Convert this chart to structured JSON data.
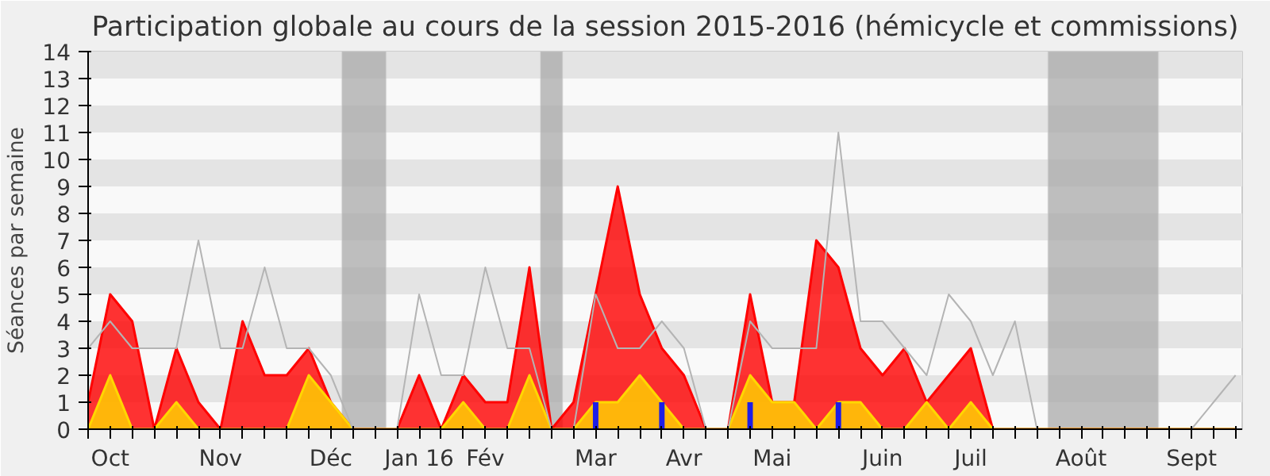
{
  "chart_data": {
    "type": "area",
    "title": "Participation globale au cours de la session 2015-2016 (hémicycle et commissions)",
    "ylabel": "Séances par semaine",
    "categories": [
      null,
      "Oct",
      null,
      null,
      null,
      null,
      "Nov",
      null,
      null,
      null,
      null,
      "Déc",
      null,
      null,
      null,
      "Jan 16",
      null,
      null,
      "Fév",
      null,
      null,
      null,
      null,
      "Mar",
      null,
      null,
      null,
      "Avr",
      null,
      null,
      null,
      "Mai",
      null,
      null,
      null,
      null,
      "Juin",
      null,
      null,
      null,
      "Juil",
      null,
      null,
      null,
      null,
      "Août",
      null,
      null,
      null,
      null,
      "Sept",
      null,
      null
    ],
    "series": [
      {
        "color": "#ff0000",
        "values": [
          1,
          5,
          4,
          0,
          3,
          1,
          0,
          4,
          2,
          2,
          3,
          1,
          0,
          0,
          0,
          2,
          0,
          2,
          1,
          1,
          6,
          0,
          1,
          5,
          9,
          5,
          3,
          2,
          0,
          0,
          5,
          1,
          1,
          7,
          6,
          3,
          2,
          3,
          1,
          2,
          3,
          0,
          0,
          0,
          0,
          0,
          0,
          0,
          0,
          0,
          0,
          0,
          0
        ]
      },
      {
        "color": "#ffd700",
        "values": [
          0,
          2,
          0,
          0,
          1,
          0,
          0,
          0,
          0,
          0,
          2,
          1,
          0,
          0,
          0,
          0,
          0,
          1,
          0,
          0,
          2,
          0,
          0,
          1,
          1,
          2,
          1,
          0,
          0,
          0,
          2,
          1,
          1,
          0,
          1,
          1,
          0,
          0,
          1,
          0,
          1,
          0,
          0,
          0,
          0,
          0,
          0,
          0,
          0,
          0,
          0,
          0,
          0
        ]
      },
      {
        "type": "line",
        "color": "#b4b4b4",
        "values": [
          3,
          4,
          3,
          3,
          3,
          7,
          3,
          3,
          6,
          3,
          3,
          2,
          0,
          0,
          0,
          5,
          2,
          2,
          6,
          3,
          3,
          0,
          0,
          5,
          3,
          3,
          4,
          3,
          0,
          0,
          4,
          3,
          3,
          3,
          11,
          4,
          4,
          3,
          2,
          5,
          4,
          2,
          4,
          0,
          0,
          0,
          0,
          0,
          0,
          0,
          0,
          1,
          2
        ]
      },
      {
        "type": "bar",
        "color": "#1e1ee6",
        "values": [
          null,
          null,
          null,
          null,
          null,
          null,
          null,
          null,
          null,
          null,
          null,
          null,
          null,
          null,
          null,
          null,
          null,
          null,
          null,
          null,
          null,
          null,
          null,
          1,
          null,
          null,
          1,
          null,
          null,
          null,
          1,
          null,
          null,
          null,
          1,
          null,
          null,
          null,
          null,
          null,
          null,
          null,
          null,
          null,
          null,
          null,
          null,
          null,
          null,
          null,
          null,
          null,
          null
        ]
      }
    ],
    "yticks": [
      0,
      1,
      2,
      3,
      4,
      5,
      6,
      7,
      8,
      9,
      10,
      11,
      12,
      13,
      14
    ],
    "ylim": [
      0,
      14
    ]
  }
}
